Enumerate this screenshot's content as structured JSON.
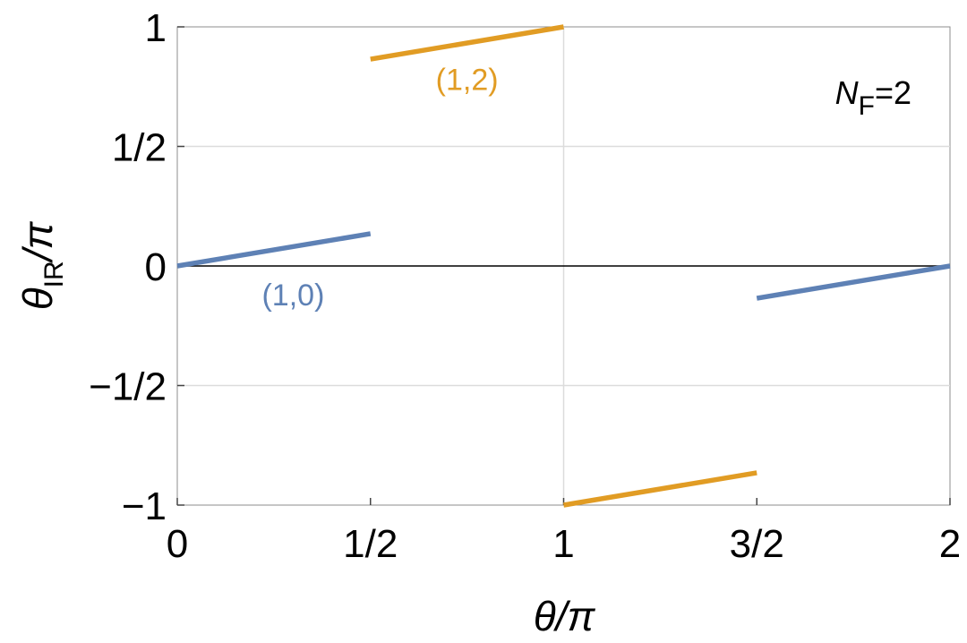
{
  "chart_data": {
    "type": "line",
    "xlabel": {
      "main": "θ/π"
    },
    "ylabel": {
      "main": "θ",
      "sub": "IR",
      "tail": "/π"
    },
    "xlim": [
      0,
      2
    ],
    "ylim": [
      -1,
      1
    ],
    "x_ticks": [
      {
        "value": 0,
        "label": "0"
      },
      {
        "value": 0.5,
        "label": "1/2"
      },
      {
        "value": 1,
        "label": "1"
      },
      {
        "value": 1.5,
        "label": "3/2"
      },
      {
        "value": 2,
        "label": "2"
      }
    ],
    "y_ticks": [
      {
        "value": -1,
        "label": "−1"
      },
      {
        "value": -0.5,
        "label": "−1/2"
      },
      {
        "value": 0,
        "label": "0"
      },
      {
        "value": 0.5,
        "label": "1/2"
      },
      {
        "value": 1,
        "label": "1"
      }
    ],
    "grid": {
      "x": [
        1
      ],
      "y": [
        -0.5,
        0.5
      ]
    },
    "annotation": {
      "symbol": "N",
      "sub": "F",
      "rest": "=2"
    },
    "series": [
      {
        "name": "(1,0)",
        "color": "#5E81B5",
        "segments": [
          [
            [
              0,
              0
            ],
            [
              0.5,
              0.135
            ]
          ],
          [
            [
              1.5,
              -0.135
            ],
            [
              2,
              0
            ]
          ]
        ],
        "label_pos": [
          0.3,
          -0.12
        ]
      },
      {
        "name": "(1,2)",
        "color": "#E19C24",
        "segments": [
          [
            [
              0.5,
              0.865
            ],
            [
              1,
              1
            ]
          ],
          [
            [
              1,
              -1
            ],
            [
              1.5,
              -0.865
            ]
          ]
        ],
        "label_pos": [
          0.75,
          0.78
        ]
      }
    ]
  }
}
